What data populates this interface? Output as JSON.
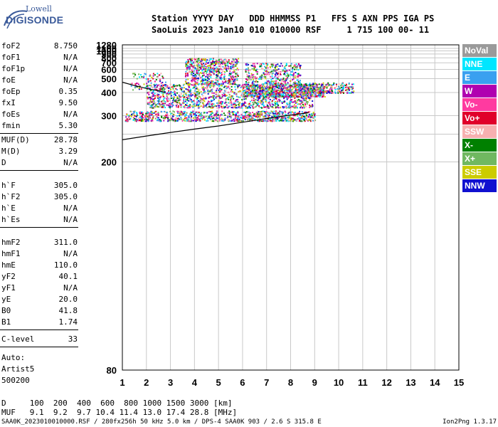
{
  "logo": {
    "top": "Lowell",
    "bottom": "DIGISONDE"
  },
  "header": {
    "line1": "Station YYYY DAY   DDD HHMMSS P1   FFS S AXN PPS IGA PS",
    "line2": "SaoLuis 2023 Jan10 010 010000 RSF     1 715 100 00- 11"
  },
  "params_a": [
    {
      "k": "foF2",
      "v": "8.750"
    },
    {
      "k": "foF1",
      "v": "N/A"
    },
    {
      "k": "foF1p",
      "v": "N/A"
    },
    {
      "k": "foE",
      "v": "N/A"
    },
    {
      "k": "foEp",
      "v": "0.35"
    },
    {
      "k": "fxI",
      "v": "9.50"
    },
    {
      "k": "foEs",
      "v": "N/A"
    },
    {
      "k": "fmin",
      "v": "5.30"
    }
  ],
  "params_b": [
    {
      "k": "MUF(D)",
      "v": "28.78"
    },
    {
      "k": "M(D)",
      "v": "3.29"
    },
    {
      "k": "D",
      "v": "N/A"
    }
  ],
  "params_c": [
    {
      "k": "h`F",
      "v": "305.0"
    },
    {
      "k": "h`F2",
      "v": "305.0"
    },
    {
      "k": "h`E",
      "v": "N/A"
    },
    {
      "k": "h`Es",
      "v": "N/A"
    }
  ],
  "params_d": [
    {
      "k": "hmF2",
      "v": "311.0"
    },
    {
      "k": "hmF1",
      "v": "N/A"
    },
    {
      "k": "hmE",
      "v": "110.0"
    },
    {
      "k": "yF2",
      "v": "40.1"
    },
    {
      "k": "yF1",
      "v": "N/A"
    },
    {
      "k": "yE",
      "v": "20.0"
    },
    {
      "k": "B0",
      "v": "41.8"
    },
    {
      "k": "B1",
      "v": "1.74"
    }
  ],
  "clevel": {
    "k": "C-level",
    "v": "33"
  },
  "auto": [
    "Auto:",
    "Artist5",
    "500200"
  ],
  "legend": [
    {
      "label": "NoVal",
      "color": "#9a9a9a"
    },
    {
      "label": "NNE",
      "color": "#00e6ff"
    },
    {
      "label": "E",
      "color": "#3aa0f0"
    },
    {
      "label": "W",
      "color": "#b000b0"
    },
    {
      "label": "Vo-",
      "color": "#ff3aa0"
    },
    {
      "label": "Vo+",
      "color": "#e0002a"
    },
    {
      "label": "SSW",
      "color": "#f7b0b0"
    },
    {
      "label": "X-",
      "color": "#008000"
    },
    {
      "label": "X+",
      "color": "#70b860"
    },
    {
      "label": "SSE",
      "color": "#cccc00"
    },
    {
      "label": "NNW",
      "color": "#1010d0"
    }
  ],
  "footer": {
    "line1": "D     100  200  400  600  800 1000 1500 3000 [km]",
    "line2": "MUF   9.1  9.2  9.7 10.4 11.4 13.0 17.4 28.8 [MHz]",
    "path": "SAA0K_2023010010000.RSF / 280fx256h 50 kHz 5.0 km / DPS-4 SAA0K 903 / 2.6 S 315.8 E",
    "version": "Ion2Png 1.3.17"
  },
  "chart_data": {
    "type": "scatter",
    "xlabel": "",
    "ylabel": "",
    "xlim": [
      1,
      15
    ],
    "ylim": [
      80,
      1280
    ],
    "y_scale": "reciprocal",
    "x_ticks": [
      1,
      2,
      3,
      4,
      5,
      6,
      7,
      8,
      9,
      10,
      11,
      12,
      13,
      14,
      15
    ],
    "y_ticks": [
      80,
      200,
      250,
      300,
      400,
      500,
      600,
      700,
      800,
      900,
      1000,
      1100,
      1280
    ],
    "grid": true,
    "legend_position": "right",
    "profile_curve": {
      "x": [
        1.0,
        2.0,
        3.0,
        4.0,
        5.0,
        6.0,
        7.0,
        7.8,
        8.3,
        8.6,
        8.75
      ],
      "y": [
        238,
        246,
        254,
        262,
        270,
        280,
        291,
        300,
        305,
        308,
        311
      ]
    },
    "trace_curve": {
      "x": [
        1.0,
        1.5,
        2.0,
        2.5,
        2.8
      ],
      "y": [
        470,
        445,
        425,
        410,
        400
      ]
    },
    "echo_regions": [
      {
        "x": [
          1.0,
          9.0
        ],
        "y": [
          280,
          320
        ]
      },
      {
        "x": [
          2.0,
          9.5
        ],
        "y": [
          320,
          480
        ]
      },
      {
        "x": [
          3.5,
          5.8
        ],
        "y": [
          480,
          820
        ]
      },
      {
        "x": [
          6.0,
          8.5
        ],
        "y": [
          480,
          700
        ]
      }
    ]
  }
}
